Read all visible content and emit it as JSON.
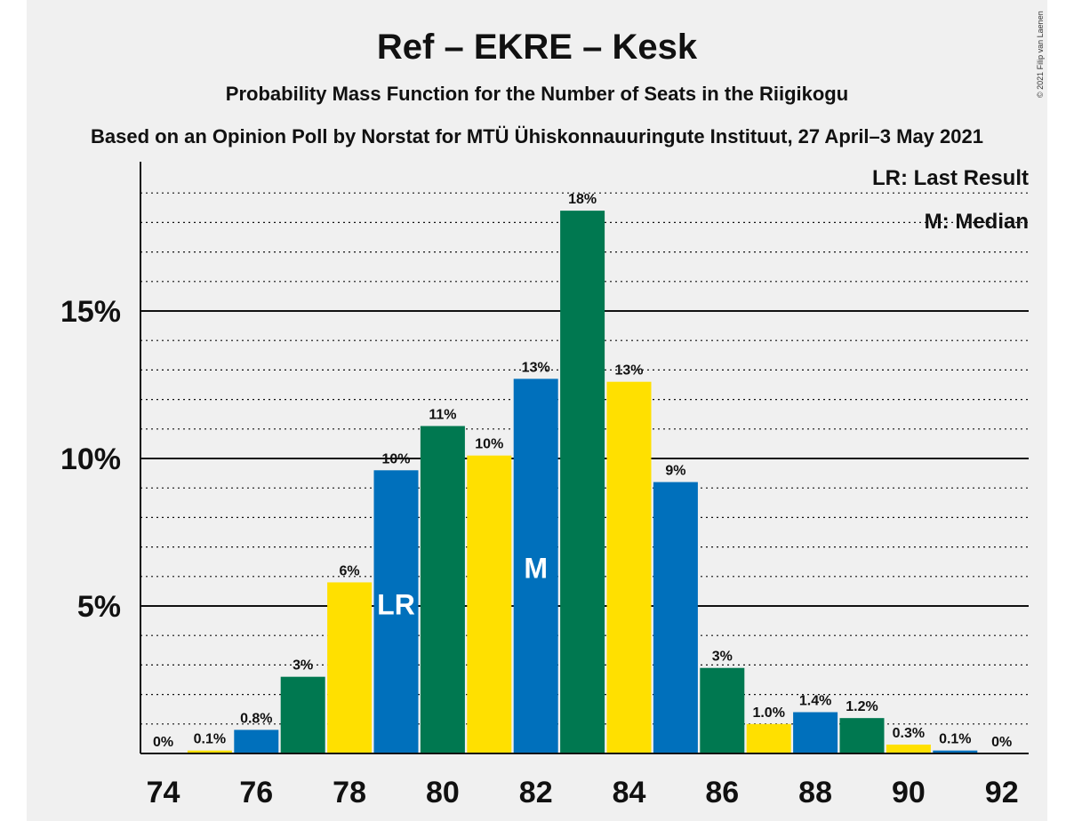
{
  "chart_data": {
    "type": "bar",
    "title": "Ref – EKRE – Kesk",
    "subtitle": "Probability Mass Function for the Number of Seats in the Riigikogu",
    "source": "Based on an Opinion Poll by Norstat for MTÜ Ühiskonnauuringute Instituut, 27 April–3 May 2021",
    "copyright": "© 2021 Filip van Laenen",
    "legend": [
      "LR: Last Result",
      "M: Median"
    ],
    "xlabel": "",
    "ylabel": "",
    "x": [
      74,
      75,
      76,
      77,
      78,
      79,
      80,
      81,
      82,
      83,
      84,
      85,
      86,
      87,
      88,
      89,
      90,
      91,
      92
    ],
    "values": [
      0,
      0.1,
      0.8,
      2.6,
      5.8,
      9.6,
      11.1,
      10.1,
      12.7,
      18.4,
      12.6,
      9.2,
      2.9,
      1.0,
      1.4,
      1.2,
      0.3,
      0.1,
      0
    ],
    "labels": [
      "0%",
      "0.1%",
      "0.8%",
      "3%",
      "6%",
      "10%",
      "11%",
      "10%",
      "13%",
      "18%",
      "13%",
      "9%",
      "3%",
      "1.0%",
      "1.4%",
      "1.2%",
      "0.3%",
      "0.1%",
      "0%"
    ],
    "bar_colors": [
      "#0070BC",
      "#FFE000",
      "#0070BC",
      "#007850",
      "#FFE000",
      "#0070BC",
      "#007850",
      "#FFE000",
      "#0070BC",
      "#007850",
      "#FFE000",
      "#0070BC",
      "#007850",
      "#FFE000",
      "#0070BC",
      "#007850",
      "#FFE000",
      "#0070BC",
      "#007850"
    ],
    "last_result_seats": 79,
    "last_result_label": "LR",
    "median_seats": 82,
    "median_label": "M",
    "x_ticks": [
      74,
      76,
      78,
      80,
      82,
      84,
      86,
      88,
      90,
      92
    ],
    "y_ticks": [
      5,
      10,
      15
    ],
    "y_tick_labels": [
      "5%",
      "10%",
      "15%"
    ],
    "ylim": [
      0,
      20
    ],
    "grid": true
  }
}
